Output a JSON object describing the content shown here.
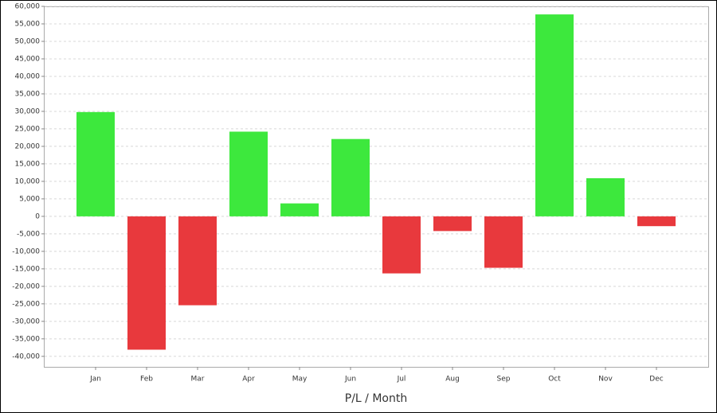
{
  "chart_data": {
    "type": "bar",
    "x_label": "P/L / Month",
    "categories": [
      "Jan",
      "Feb",
      "Mar",
      "Apr",
      "May",
      "Jun",
      "Jul",
      "Aug",
      "Sep",
      "Oct",
      "Nov",
      "Dec"
    ],
    "values": [
      29800,
      -38100,
      -25400,
      24200,
      3700,
      22100,
      -16300,
      -4200,
      -14700,
      57700,
      10900,
      -2800
    ],
    "positive_color": "#3de83d",
    "negative_color": "#e8393d",
    "ylim": [
      -43000,
      60000
    ],
    "yticks": [
      {
        "value": -40000,
        "label": "-40,000"
      },
      {
        "value": -35000,
        "label": "-35,000"
      },
      {
        "value": -30000,
        "label": "-30,000"
      },
      {
        "value": -25000,
        "label": "-25,000"
      },
      {
        "value": -20000,
        "label": "-20,000"
      },
      {
        "value": -15000,
        "label": "-15,000"
      },
      {
        "value": -10000,
        "label": "-10,000"
      },
      {
        "value": -5000,
        "label": "-5,000"
      },
      0,
      {
        "value": 5000,
        "label": "5,000"
      },
      {
        "value": 10000,
        "label": "10,000"
      },
      {
        "value": 15000,
        "label": "15,000"
      },
      {
        "value": 20000,
        "label": "20,000"
      },
      {
        "value": 25000,
        "label": "25,000"
      },
      {
        "value": 30000,
        "label": "30,000"
      },
      {
        "value": 35000,
        "label": "35,000"
      },
      {
        "value": 40000,
        "label": "40,000"
      },
      {
        "value": 45000,
        "label": "45,000"
      },
      {
        "value": 50000,
        "label": "50,000"
      },
      {
        "value": 55000,
        "label": "55,000"
      },
      {
        "value": 60000,
        "label": "60,000"
      }
    ],
    "grid": true
  }
}
